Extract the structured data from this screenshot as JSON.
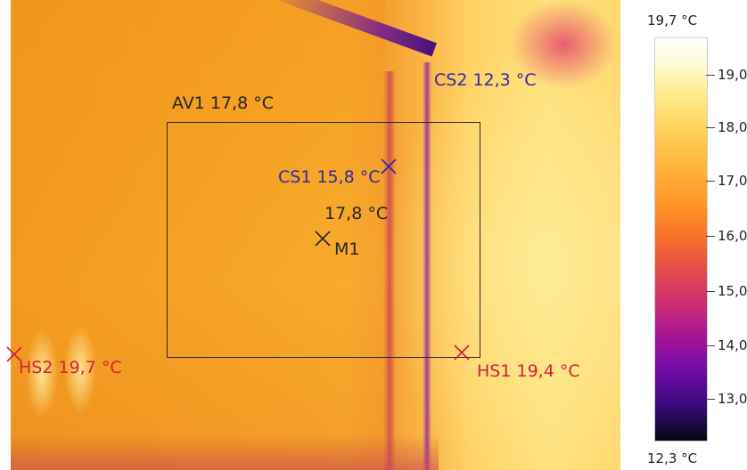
{
  "thermal_image": {
    "markers": {
      "cs2": {
        "label": "CS2 12,3 °C",
        "color": "#2f2aa4"
      },
      "av1": {
        "label": "AV1 17,8 °C"
      },
      "cs1": {
        "label": "CS1 15,8 °C",
        "color": "#2f2aa4"
      },
      "m1": {
        "value": "17,8 °C",
        "label": "M1"
      },
      "hs2": {
        "label": "HS2 19,7 °C",
        "color": "#d41f3a"
      },
      "hs1": {
        "label": "HS1 19,4 °C",
        "color": "#d41f3a"
      }
    }
  },
  "color_scale": {
    "max_label": "19,7 °C",
    "min_label": "12,3 °C",
    "ticks": [
      "19,0",
      "18,0",
      "17,0",
      "16,0",
      "15,0",
      "14,0",
      "13,0"
    ],
    "palette": "iron"
  }
}
